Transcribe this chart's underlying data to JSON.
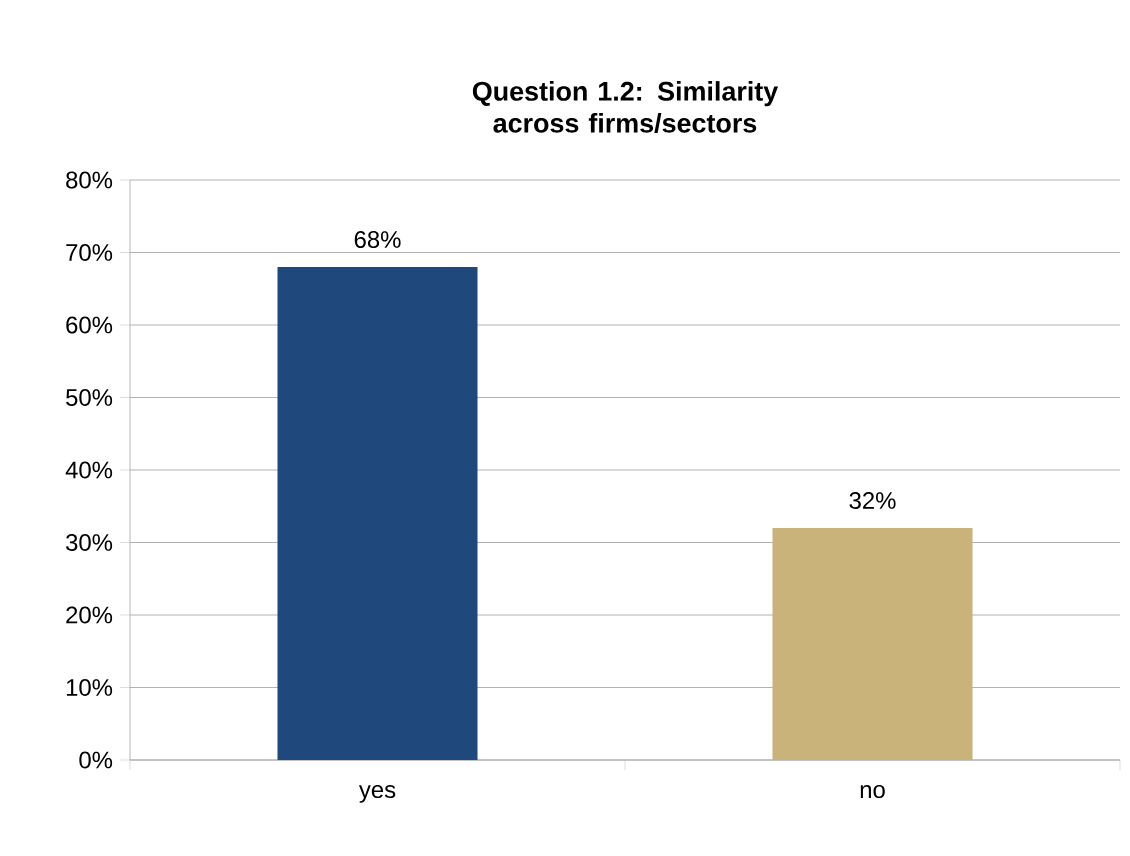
{
  "chart_data": {
    "type": "bar",
    "title": "Question 1.2: Similarity across firms/sectors",
    "categories": [
      "yes",
      "no"
    ],
    "values": [
      68,
      32
    ],
    "colors": [
      "#1f497d",
      "#c9b37a"
    ],
    "value_labels": [
      "68%",
      "32%"
    ],
    "ylim": [
      0,
      80
    ],
    "yticks": [
      {
        "value": 0,
        "label": "0%"
      },
      {
        "value": 10,
        "label": "10%"
      },
      {
        "value": 20,
        "label": "20%"
      },
      {
        "value": 30,
        "label": "30%"
      },
      {
        "value": 40,
        "label": "40%"
      },
      {
        "value": 50,
        "label": "50%"
      },
      {
        "value": 60,
        "label": "60%"
      },
      {
        "value": 70,
        "label": "70%"
      },
      {
        "value": 80,
        "label": "80%"
      }
    ],
    "grid": "y"
  }
}
